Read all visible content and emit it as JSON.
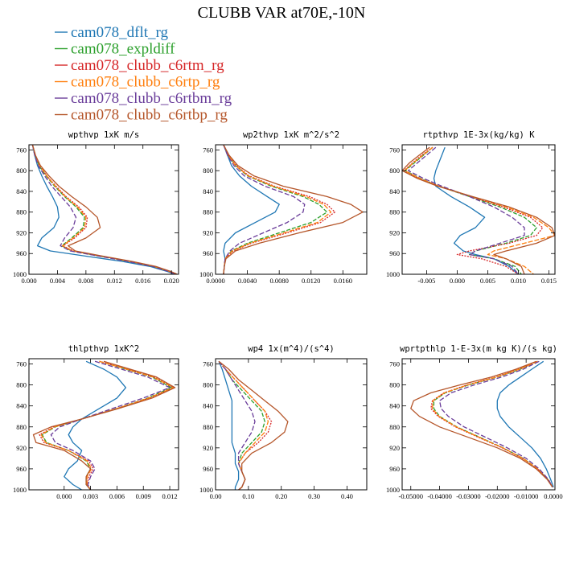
{
  "figure": {
    "title": "CLUBB VAR at70E,-10N"
  },
  "legend": [
    {
      "name": "cam078_dflt_rg",
      "color": "#1f77b4",
      "dash": ""
    },
    {
      "name": "cam078_expldiff",
      "color": "#2ca02c",
      "dash": "5,2"
    },
    {
      "name": "cam078_clubb_c6rtm_rg",
      "color": "#d62728",
      "dash": "2,1.5"
    },
    {
      "name": "cam078_clubb_c6rtp_rg",
      "color": "#ff7f0e",
      "dash": "6,2"
    },
    {
      "name": "cam078_clubb_c6rtbm_rg",
      "color": "#6a3d9a",
      "dash": "6,2.5"
    },
    {
      "name": "cam078_clubb_c6rtbp_rg",
      "color": "#b5562a",
      "dash": ""
    }
  ],
  "chart_data": [
    {
      "type": "line",
      "title": "wpthvp   1xK m/s",
      "xlim": [
        0.0,
        0.021
      ],
      "xticks": [
        0.0,
        0.004,
        0.008,
        0.012,
        0.016,
        0.02
      ],
      "xtick_labels": [
        "0.000",
        "0.004",
        "0.008",
        "0.012",
        "0.016",
        "0.020"
      ],
      "ylim": [
        1000,
        750
      ],
      "yticks": [
        760,
        800,
        840,
        880,
        920,
        960,
        1000
      ],
      "ytick_labels": [
        "760",
        "800",
        "840",
        "880",
        "920",
        "960",
        "1000"
      ],
      "y": [
        750,
        770,
        790,
        810,
        830,
        850,
        870,
        890,
        910,
        930,
        945,
        955,
        965,
        975,
        985,
        995,
        1000
      ],
      "series": [
        {
          "x": [
            0.0005,
            0.0008,
            0.0012,
            0.0018,
            0.0025,
            0.0033,
            0.004,
            0.0042,
            0.0035,
            0.0018,
            0.0012,
            0.003,
            0.008,
            0.013,
            0.017,
            0.0195,
            0.0205
          ]
        },
        {
          "x": [
            0.0005,
            0.0009,
            0.0014,
            0.0024,
            0.0036,
            0.005,
            0.0066,
            0.0078,
            0.0076,
            0.006,
            0.0046,
            0.006,
            0.01,
            0.014,
            0.0175,
            0.0198,
            0.0207
          ]
        },
        {
          "x": [
            0.0005,
            0.0009,
            0.0015,
            0.0025,
            0.0038,
            0.0052,
            0.007,
            0.0082,
            0.008,
            0.0064,
            0.0048,
            0.0062,
            0.0102,
            0.0142,
            0.0177,
            0.0199,
            0.0208
          ]
        },
        {
          "x": [
            0.0005,
            0.0009,
            0.0015,
            0.0025,
            0.0037,
            0.0051,
            0.0068,
            0.008,
            0.0078,
            0.0062,
            0.0047,
            0.0061,
            0.0101,
            0.0141,
            0.0176,
            0.0198,
            0.0207
          ]
        },
        {
          "x": [
            0.0005,
            0.0008,
            0.0013,
            0.0022,
            0.0032,
            0.0045,
            0.0058,
            0.0066,
            0.0062,
            0.005,
            0.0044,
            0.0058,
            0.0098,
            0.0138,
            0.0174,
            0.0197,
            0.0206
          ]
        },
        {
          "x": [
            0.0005,
            0.0009,
            0.0016,
            0.0028,
            0.0042,
            0.006,
            0.008,
            0.0096,
            0.01,
            0.008,
            0.0055,
            0.0065,
            0.0104,
            0.0144,
            0.0178,
            0.02,
            0.0208
          ]
        }
      ]
    },
    {
      "type": "line",
      "title": "wp2thvp   1xK m^2/s^2",
      "xlim": [
        0.0,
        0.019
      ],
      "xticks": [
        0.0,
        0.004,
        0.008,
        0.012,
        0.016
      ],
      "xtick_labels": [
        "0.0000",
        "0.0040",
        "0.0080",
        "0.0120",
        "0.0160"
      ],
      "ylim": [
        1000,
        750
      ],
      "yticks": [
        760,
        800,
        840,
        880,
        920,
        960,
        1000
      ],
      "ytick_labels": [
        "760",
        "800",
        "840",
        "880",
        "920",
        "960",
        "1000"
      ],
      "y": [
        750,
        770,
        790,
        810,
        830,
        850,
        865,
        880,
        900,
        920,
        940,
        955,
        970,
        985,
        1000
      ],
      "series": [
        {
          "x": [
            0.001,
            0.0015,
            0.002,
            0.003,
            0.0045,
            0.0065,
            0.008,
            0.0075,
            0.005,
            0.0025,
            0.0012,
            0.001,
            0.0012,
            0.0011,
            0.001
          ]
        },
        {
          "x": [
            0.001,
            0.0016,
            0.0025,
            0.004,
            0.007,
            0.011,
            0.013,
            0.014,
            0.012,
            0.008,
            0.004,
            0.002,
            0.0012,
            0.0011,
            0.001
          ]
        },
        {
          "x": [
            0.001,
            0.0016,
            0.0026,
            0.0042,
            0.0074,
            0.0118,
            0.014,
            0.015,
            0.0132,
            0.009,
            0.0045,
            0.0022,
            0.0012,
            0.0011,
            0.001
          ]
        },
        {
          "x": [
            0.001,
            0.0016,
            0.0025,
            0.0041,
            0.0072,
            0.0114,
            0.0136,
            0.0145,
            0.0128,
            0.0086,
            0.0043,
            0.0021,
            0.0012,
            0.0011,
            0.001
          ]
        },
        {
          "x": [
            0.001,
            0.0015,
            0.0023,
            0.0036,
            0.0062,
            0.0098,
            0.0112,
            0.011,
            0.009,
            0.006,
            0.003,
            0.0018,
            0.0012,
            0.0011,
            0.001
          ]
        },
        {
          "x": [
            0.001,
            0.0017,
            0.0028,
            0.0048,
            0.0085,
            0.014,
            0.017,
            0.0185,
            0.016,
            0.0105,
            0.0055,
            0.0025,
            0.0013,
            0.0011,
            0.001
          ]
        }
      ]
    },
    {
      "type": "line",
      "title": "rtpthvp   1E-3x(kg/kg) K",
      "xlim": [
        -0.009,
        0.016
      ],
      "xticks": [
        -0.005,
        0.0,
        0.005,
        0.01,
        0.015
      ],
      "xtick_labels": [
        "-0.005",
        "0.000",
        "0.005",
        "0.010",
        "0.015"
      ],
      "ylim": [
        1000,
        750
      ],
      "yticks": [
        760,
        800,
        840,
        880,
        920,
        960,
        1000
      ],
      "ytick_labels": [
        "760",
        "800",
        "840",
        "880",
        "920",
        "960",
        "1000"
      ],
      "y": [
        755,
        770,
        785,
        800,
        815,
        830,
        850,
        870,
        890,
        910,
        925,
        940,
        955,
        962,
        970,
        985,
        1000
      ],
      "series": [
        {
          "x": [
            -0.002,
            -0.0025,
            -0.003,
            -0.0035,
            -0.0038,
            -0.0035,
            -0.001,
            0.002,
            0.0045,
            0.003,
            0.0005,
            -0.0005,
            0.001,
            0.003,
            0.006,
            0.0085,
            0.01
          ]
        },
        {
          "x": [
            -0.004,
            -0.0055,
            -0.007,
            -0.0085,
            -0.006,
            -0.003,
            0.002,
            0.007,
            0.011,
            0.013,
            0.012,
            0.008,
            0.003,
            0.002,
            0.006,
            0.0095,
            0.0105
          ]
        },
        {
          "x": [
            -0.004,
            -0.0058,
            -0.0073,
            -0.0087,
            -0.0062,
            -0.003,
            0.0022,
            0.0075,
            0.012,
            0.014,
            0.013,
            0.0085,
            0.002,
            0.0,
            0.004,
            0.008,
            0.01
          ]
        },
        {
          "x": [
            -0.004,
            -0.0056,
            -0.0072,
            -0.0086,
            -0.0061,
            -0.003,
            0.0024,
            0.008,
            0.0125,
            0.015,
            0.016,
            0.011,
            0.006,
            0.005,
            0.008,
            0.011,
            0.0125
          ]
        },
        {
          "x": [
            -0.0035,
            -0.005,
            -0.0065,
            -0.008,
            -0.0055,
            -0.0025,
            0.002,
            0.006,
            0.009,
            0.011,
            0.011,
            0.007,
            0.003,
            0.002,
            0.006,
            0.009,
            0.01
          ]
        },
        {
          "x": [
            -0.0045,
            -0.0062,
            -0.0078,
            -0.009,
            -0.0065,
            -0.0032,
            0.0025,
            0.0085,
            0.013,
            0.0155,
            0.016,
            0.013,
            0.008,
            0.006,
            0.008,
            0.0105,
            0.011
          ]
        }
      ]
    },
    {
      "type": "line",
      "title": "thlpthvp   1xK^2",
      "xlim": [
        -0.004,
        0.013
      ],
      "xticks": [
        0.0,
        0.003,
        0.006,
        0.009,
        0.012
      ],
      "xtick_labels": [
        "0.000",
        "0.003",
        "0.006",
        "0.009",
        "0.012"
      ],
      "ylim": [
        1000,
        750
      ],
      "yticks": [
        760,
        800,
        840,
        880,
        920,
        960,
        1000
      ],
      "ytick_labels": [
        "760",
        "800",
        "840",
        "880",
        "920",
        "960",
        "1000"
      ],
      "y": [
        755,
        770,
        785,
        805,
        825,
        845,
        865,
        880,
        895,
        910,
        925,
        945,
        960,
        975,
        990,
        1000
      ],
      "series": [
        {
          "x": [
            0.0025,
            0.0045,
            0.006,
            0.007,
            0.006,
            0.004,
            0.002,
            0.001,
            0.0005,
            0.001,
            0.002,
            0.0015,
            0.0005,
            0.0,
            0.001,
            0.002
          ]
        },
        {
          "x": [
            0.004,
            0.007,
            0.01,
            0.0122,
            0.0095,
            0.006,
            0.002,
            -0.001,
            -0.0025,
            -0.002,
            0.0005,
            0.0025,
            0.003,
            0.0025,
            0.0025,
            0.003
          ]
        },
        {
          "x": [
            0.004,
            0.0072,
            0.0102,
            0.0125,
            0.0097,
            0.006,
            0.002,
            -0.0012,
            -0.0028,
            -0.0023,
            0.0005,
            0.0028,
            0.0033,
            0.0028,
            0.0026,
            0.003
          ]
        },
        {
          "x": [
            0.004,
            0.0071,
            0.0101,
            0.0124,
            0.0096,
            0.006,
            0.002,
            -0.0011,
            -0.0026,
            -0.0021,
            0.0005,
            0.0026,
            0.0031,
            0.0026,
            0.0026,
            0.003
          ]
        },
        {
          "x": [
            0.0035,
            0.0065,
            0.0095,
            0.012,
            0.009,
            0.0055,
            0.002,
            -0.0005,
            -0.0015,
            -0.001,
            0.001,
            0.003,
            0.0035,
            0.003,
            0.0027,
            0.003
          ]
        },
        {
          "x": [
            0.0045,
            0.0075,
            0.0105,
            0.0126,
            0.01,
            0.0062,
            0.002,
            -0.0015,
            -0.0035,
            -0.0032,
            0.0,
            0.002,
            0.003,
            0.0025,
            0.0025,
            0.003
          ]
        }
      ]
    },
    {
      "type": "line",
      "title": "wp4   1x(m^4)/(s^4)",
      "xlim": [
        0.0,
        0.46
      ],
      "xticks": [
        0.0,
        0.1,
        0.2,
        0.3,
        0.4
      ],
      "xtick_labels": [
        "0.00",
        "0.10",
        "0.20",
        "0.30",
        "0.40"
      ],
      "ylim": [
        1000,
        750
      ],
      "yticks": [
        760,
        800,
        840,
        880,
        920,
        960,
        1000
      ],
      "ytick_labels": [
        "760",
        "800",
        "840",
        "880",
        "920",
        "960",
        "1000"
      ],
      "y": [
        755,
        770,
        790,
        810,
        830,
        850,
        870,
        890,
        910,
        930,
        950,
        965,
        980,
        995,
        1000
      ],
      "series": [
        {
          "x": [
            0.01,
            0.02,
            0.03,
            0.04,
            0.05,
            0.05,
            0.05,
            0.05,
            0.05,
            0.06,
            0.06,
            0.07,
            0.07,
            0.06,
            0.06
          ]
        },
        {
          "x": [
            0.01,
            0.03,
            0.05,
            0.08,
            0.11,
            0.14,
            0.15,
            0.14,
            0.11,
            0.08,
            0.07,
            0.08,
            0.09,
            0.08,
            0.07
          ]
        },
        {
          "x": [
            0.01,
            0.03,
            0.06,
            0.09,
            0.12,
            0.15,
            0.17,
            0.16,
            0.13,
            0.09,
            0.07,
            0.08,
            0.09,
            0.08,
            0.07
          ]
        },
        {
          "x": [
            0.01,
            0.03,
            0.06,
            0.09,
            0.12,
            0.15,
            0.16,
            0.15,
            0.12,
            0.09,
            0.07,
            0.08,
            0.09,
            0.08,
            0.07
          ]
        },
        {
          "x": [
            0.01,
            0.03,
            0.05,
            0.07,
            0.09,
            0.11,
            0.12,
            0.11,
            0.09,
            0.07,
            0.07,
            0.08,
            0.09,
            0.08,
            0.07
          ]
        },
        {
          "x": [
            0.01,
            0.04,
            0.07,
            0.11,
            0.15,
            0.19,
            0.22,
            0.21,
            0.17,
            0.11,
            0.08,
            0.08,
            0.09,
            0.08,
            0.07
          ]
        }
      ]
    },
    {
      "type": "line",
      "title": "wprtpthlp   1-E-3x(m kg K)/(s kg)",
      "xlim": [
        -0.053,
        0.0
      ],
      "xticks": [
        -0.05,
        -0.04,
        -0.03,
        -0.02,
        -0.01,
        0.0
      ],
      "xtick_labels": [
        "-0.05000",
        "-0.04000",
        "-0.03000",
        "-0.02000",
        "-0.01000",
        "0.00000"
      ],
      "ylim": [
        1000,
        750
      ],
      "yticks": [
        760,
        800,
        840,
        880,
        920,
        960,
        1000
      ],
      "ytick_labels": [
        "760",
        "800",
        "840",
        "880",
        "920",
        "960",
        "1000"
      ],
      "y": [
        755,
        770,
        785,
        800,
        815,
        830,
        845,
        860,
        880,
        900,
        920,
        940,
        960,
        980,
        995
      ],
      "series": [
        {
          "x": [
            -0.004,
            -0.008,
            -0.012,
            -0.016,
            -0.019,
            -0.02,
            -0.02,
            -0.019,
            -0.016,
            -0.012,
            -0.008,
            -0.005,
            -0.003,
            -0.0015,
            -0.0005
          ]
        },
        {
          "x": [
            -0.006,
            -0.012,
            -0.02,
            -0.03,
            -0.038,
            -0.042,
            -0.042,
            -0.04,
            -0.034,
            -0.026,
            -0.018,
            -0.011,
            -0.006,
            -0.0025,
            -0.0008
          ]
        },
        {
          "x": [
            -0.006,
            -0.0125,
            -0.0205,
            -0.0305,
            -0.0385,
            -0.0425,
            -0.043,
            -0.0405,
            -0.0345,
            -0.0265,
            -0.0183,
            -0.0112,
            -0.006,
            -0.0025,
            -0.0008
          ]
        },
        {
          "x": [
            -0.006,
            -0.0123,
            -0.0203,
            -0.0303,
            -0.0383,
            -0.0423,
            -0.0425,
            -0.0402,
            -0.0342,
            -0.0262,
            -0.0181,
            -0.0111,
            -0.006,
            -0.0025,
            -0.0008
          ]
        },
        {
          "x": [
            -0.0055,
            -0.011,
            -0.0185,
            -0.028,
            -0.036,
            -0.04,
            -0.0395,
            -0.037,
            -0.0315,
            -0.024,
            -0.0165,
            -0.01,
            -0.0055,
            -0.0023,
            -0.0008
          ]
        },
        {
          "x": [
            -0.0065,
            -0.0135,
            -0.022,
            -0.033,
            -0.043,
            -0.049,
            -0.05,
            -0.047,
            -0.04,
            -0.03,
            -0.02,
            -0.012,
            -0.0065,
            -0.0027,
            -0.0009
          ]
        }
      ]
    }
  ]
}
